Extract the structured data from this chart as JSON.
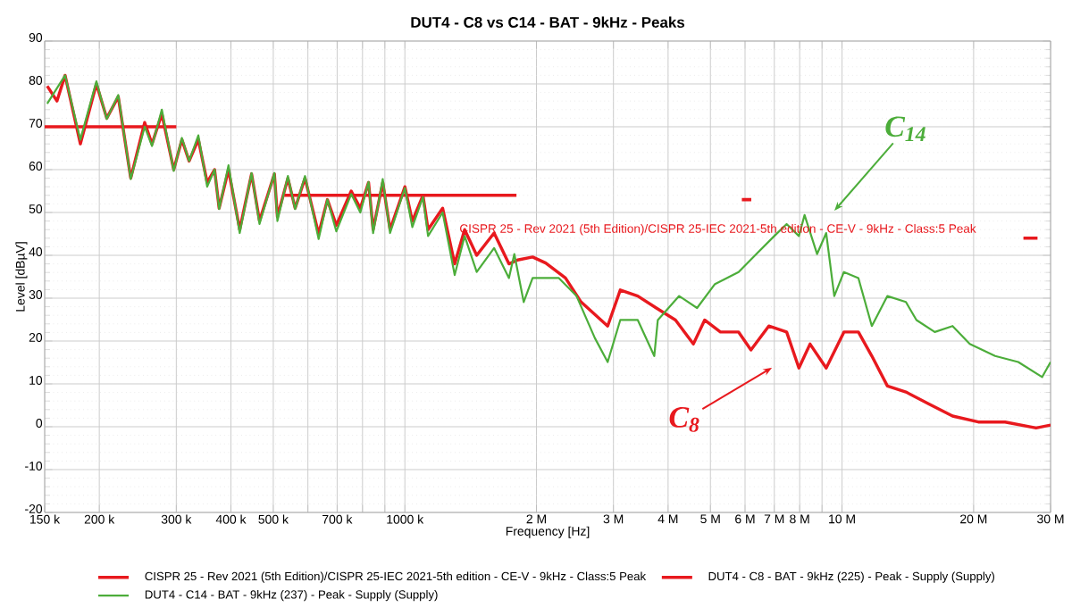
{
  "chart_data": {
    "type": "line",
    "title": "DUT4 - C8 vs C14 - BAT - 9kHz - Peaks",
    "xlabel": "Frequency [Hz]",
    "ylabel": "Level [dBµV]",
    "log": "x",
    "grid": true,
    "legend": "bottom",
    "marker": "none",
    "line_style": "solid",
    "xlim": [
      150000,
      30000000
    ],
    "ylim": [
      -20,
      90
    ],
    "xticks": [
      {
        "value": 150000,
        "label": "150 k"
      },
      {
        "value": 200000,
        "label": "200 k"
      },
      {
        "value": 300000,
        "label": "300 k"
      },
      {
        "value": 400000,
        "label": "400 k"
      },
      {
        "value": 500000,
        "label": "500 k"
      },
      {
        "value": 600000,
        "label": null
      },
      {
        "value": 700000,
        "label": "700 k"
      },
      {
        "value": 800000,
        "label": null
      },
      {
        "value": 900000,
        "label": null
      },
      {
        "value": 1000000,
        "label": "1000 k"
      },
      {
        "value": 2000000,
        "label": "2 M"
      },
      {
        "value": 3000000,
        "label": "3 M"
      },
      {
        "value": 4000000,
        "label": "4 M"
      },
      {
        "value": 5000000,
        "label": "5 M"
      },
      {
        "value": 6000000,
        "label": "6 M"
      },
      {
        "value": 7000000,
        "label": "7 M"
      },
      {
        "value": 8000000,
        "label": "8 M"
      },
      {
        "value": 9000000,
        "label": null
      },
      {
        "value": 10000000,
        "label": "10 M"
      },
      {
        "value": 20000000,
        "label": "20 M"
      },
      {
        "value": 30000000,
        "label": "30 M"
      }
    ],
    "yticks": [
      -20,
      -10,
      0,
      10,
      20,
      30,
      40,
      50,
      60,
      70,
      80,
      90
    ],
    "series": [
      {
        "name": "CISPR 25 - Rev 2021 (5th Edition)/CISPR 25-IEC 2021-5th edition - CE-V - 9kHz - Class:5 Peak",
        "color": "#e8191e",
        "x": [
          150000,
          300000,
          400000,
          530000,
          1800000,
          3000000,
          5900000,
          6200000,
          10000000,
          26000000,
          28000000
        ],
        "values": [
          70,
          70,
          null,
          54,
          54,
          null,
          53,
          53,
          null,
          44,
          44
        ]
      },
      {
        "name": "DUT4 - C8 - BAT - 9kHz (225) - Peak - Supply (Supply)",
        "color": "#e8191e",
        "x": [
          152000,
          160000,
          167000,
          181000,
          197000,
          208000,
          221000,
          236000,
          254000,
          264000,
          278000,
          296000,
          309000,
          321000,
          337000,
          353000,
          367000,
          376000,
          395000,
          419000,
          446000,
          465000,
          503000,
          511000,
          540000,
          561000,
          591000,
          635000,
          665000,
          697000,
          754000,
          791000,
          826000,
          846000,
          890000,
          925000,
          1000000,
          1040000,
          1100000,
          1130000,
          1220000,
          1300000,
          1370000,
          1460000,
          1600000,
          1730000,
          1810000,
          1960000,
          2100000,
          2330000,
          2530000,
          2910000,
          3110000,
          3410000,
          3760000,
          4160000,
          4570000,
          4850000,
          5270000,
          5800000,
          6190000,
          6800000,
          7470000,
          7970000,
          8450000,
          9200000,
          10100000,
          10900000,
          11700000,
          12700000,
          14000000,
          15800000,
          17900000,
          20500000,
          23600000,
          27800000,
          30000000
        ],
        "values": [
          79.5,
          76,
          82,
          66,
          80,
          72,
          77,
          58,
          71,
          66,
          73,
          60,
          67,
          62,
          67,
          57,
          60,
          51,
          60,
          46,
          59,
          48,
          59,
          49,
          58,
          51,
          58,
          45,
          53,
          47,
          55,
          51,
          57,
          46,
          57,
          46,
          56,
          48,
          54,
          46,
          51,
          38,
          46,
          40,
          45.2,
          38,
          38.9,
          39.6,
          38.2,
          34.7,
          29.1,
          23.5,
          31.9,
          30.5,
          27.7,
          24.9,
          19.3,
          24.9,
          22.1,
          22.1,
          17.9,
          23.5,
          22.1,
          13.7,
          19.3,
          13.7,
          22.1,
          22.1,
          16.5,
          9.5,
          8.1,
          5.3,
          2.5,
          1.1,
          1.1,
          -0.3,
          0.4
        ]
      },
      {
        "name": "DUT4 - C14 - BAT - 9kHz (237) - Peak - Supply (Supply)",
        "color": "#4cad3a",
        "x": [
          152000,
          167000,
          181000,
          197000,
          208000,
          221000,
          236000,
          254000,
          264000,
          278000,
          296000,
          309000,
          321000,
          337000,
          353000,
          367000,
          376000,
          395000,
          419000,
          446000,
          465000,
          503000,
          511000,
          540000,
          561000,
          591000,
          635000,
          665000,
          697000,
          754000,
          791000,
          826000,
          846000,
          890000,
          925000,
          1000000,
          1040000,
          1100000,
          1130000,
          1220000,
          1300000,
          1370000,
          1460000,
          1600000,
          1730000,
          1780000,
          1870000,
          1960000,
          2250000,
          2470000,
          2720000,
          2910000,
          3110000,
          3410000,
          3720000,
          3790000,
          4240000,
          4660000,
          5120000,
          5800000,
          6370000,
          7000000,
          7470000,
          7970000,
          8210000,
          8770000,
          9200000,
          9600000,
          10100000,
          10900000,
          11700000,
          12700000,
          14000000,
          14800000,
          16300000,
          17900000,
          19600000,
          22400000,
          25300000,
          28700000,
          30000000
        ],
        "values": [
          75.4,
          82,
          67,
          80.6,
          71.8,
          77.4,
          57.8,
          70,
          65.5,
          74,
          59.7,
          67.4,
          62,
          68,
          56,
          60,
          50.8,
          61,
          45.2,
          59.2,
          47.3,
          59.2,
          48,
          58.5,
          50.8,
          58.5,
          43.8,
          53,
          45.6,
          54.3,
          50,
          57.1,
          45.2,
          57.8,
          45.2,
          55.7,
          46.6,
          53.6,
          44.5,
          50,
          35.4,
          44.5,
          36.1,
          41.7,
          34.7,
          40.3,
          29.1,
          34.7,
          34.7,
          30.5,
          20.7,
          15.1,
          24.9,
          24.9,
          16.5,
          24.9,
          30.5,
          27.7,
          33.3,
          36.1,
          40.3,
          44.5,
          47.3,
          44.5,
          49.4,
          40.3,
          45.2,
          30.5,
          36.1,
          34.7,
          23.5,
          30.5,
          29.1,
          24.9,
          22.1,
          23.5,
          19.3,
          16.5,
          15.1,
          11.6,
          15.1
        ]
      }
    ],
    "annotations": [
      "CISPR 25 - Rev 2021 (5th Edition)/CISPR 25-IEC 2021-5th edition - CE-V - 9kHz - Class:5 Peak",
      "C$_{14}$",
      "C$_{8}$"
    ]
  }
}
